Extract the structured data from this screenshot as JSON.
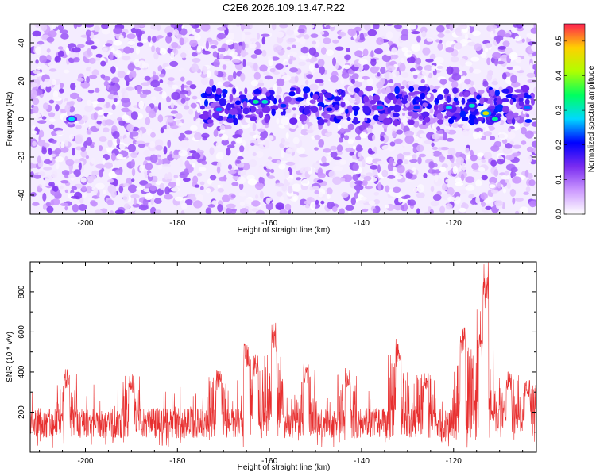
{
  "title": "C2E6.2026.109.13.47.R22",
  "chart_data": [
    {
      "type": "heatmap",
      "xlabel": "Height of straight line (km)",
      "ylabel": "Frequency (Hz)",
      "xlim": [
        -212,
        -102
      ],
      "ylim": [
        -50,
        50
      ],
      "xticks": [
        -200,
        -180,
        -160,
        -140,
        -120
      ],
      "yticks": [
        -40,
        -20,
        0,
        20,
        40
      ],
      "colorbar": {
        "label": "Normalized spectral amplitude",
        "range": [
          0.0,
          0.55
        ],
        "ticks": [
          0.0,
          0.1,
          0.2,
          0.3,
          0.4,
          0.5
        ],
        "tick_labels": [
          "0.0",
          "0.1",
          "0.2",
          "0.3",
          "0.4",
          "0.5"
        ],
        "colors": [
          "#ffffff",
          "#cc99ff",
          "#7a2cf0",
          "#0000ff",
          "#00d8ff",
          "#00ff60",
          "#b0ff00",
          "#ffd000",
          "#ff2050"
        ]
      },
      "signal_band": {
        "frequency_hz": 7,
        "clusters": [
          {
            "x": -203,
            "y": 0,
            "value": 0.28
          },
          {
            "x": -171,
            "y": 5,
            "value": 0.25
          },
          {
            "x": -163,
            "y": 9,
            "value": 0.32
          },
          {
            "x": -161,
            "y": 9,
            "value": 0.3
          },
          {
            "x": -157,
            "y": 7,
            "value": 0.22
          },
          {
            "x": -147,
            "y": 5,
            "value": 0.2
          },
          {
            "x": -136,
            "y": 6,
            "value": 0.24
          },
          {
            "x": -128,
            "y": 6,
            "value": 0.22
          },
          {
            "x": -121,
            "y": 6,
            "value": 0.28
          },
          {
            "x": -116,
            "y": 7,
            "value": 0.3
          },
          {
            "x": -113,
            "y": 3,
            "value": 0.45
          },
          {
            "x": -111,
            "y": 0,
            "value": 0.32
          },
          {
            "x": -104,
            "y": 6,
            "value": 0.24
          }
        ]
      }
    },
    {
      "type": "line",
      "xlabel": "Height of straight line (km)",
      "ylabel": "SNR (10 * v/v)",
      "xlim": [
        -212,
        -102
      ],
      "ylim": [
        0,
        950
      ],
      "xticks": [
        -200,
        -180,
        -160,
        -140,
        -120
      ],
      "yticks": [
        200,
        400,
        600,
        800
      ],
      "color": "#e83030",
      "baseline_range": [
        70,
        220
      ],
      "peaks": [
        {
          "x": -204,
          "y": 420
        },
        {
          "x": -190,
          "y": 390
        },
        {
          "x": -171,
          "y": 410
        },
        {
          "x": -165,
          "y": 560
        },
        {
          "x": -163,
          "y": 490
        },
        {
          "x": -159,
          "y": 650
        },
        {
          "x": -152,
          "y": 450
        },
        {
          "x": -143,
          "y": 420
        },
        {
          "x": -132,
          "y": 570
        },
        {
          "x": -126,
          "y": 400
        },
        {
          "x": -118,
          "y": 640
        },
        {
          "x": -114,
          "y": 600
        },
        {
          "x": -113,
          "y": 950
        },
        {
          "x": -108,
          "y": 410
        },
        {
          "x": -104,
          "y": 360
        }
      ]
    }
  ]
}
